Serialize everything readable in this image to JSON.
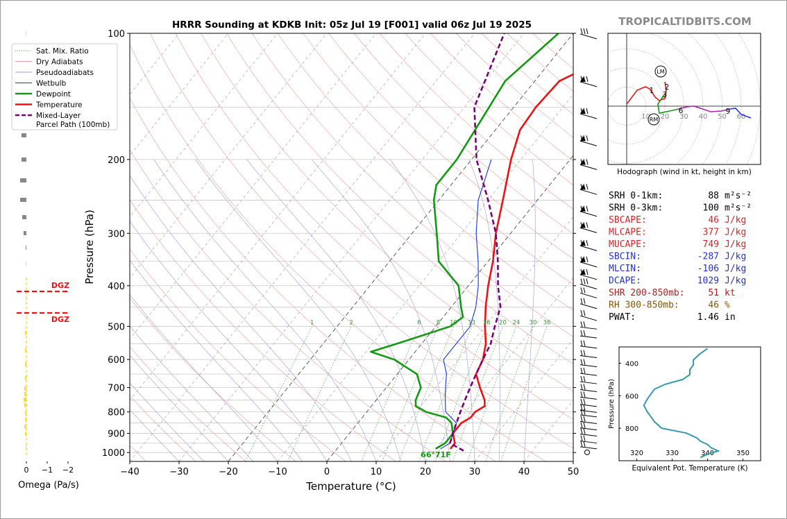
{
  "title": "HRRR Sounding at KDKB Init: 05z Jul 19 [F001] valid 06z Jul 19 2025",
  "brand": "TROPICALTIDBITS.COM",
  "colors": {
    "temp": "#ee1111",
    "dew": "#119911",
    "wetbulb": "#1133ee",
    "parcel": "#770077",
    "omega": "#ffdd33",
    "dgz": "#ee1111",
    "theta": "#3399aa"
  },
  "legend": [
    {
      "label": "Sat. Mix. Ratio",
      "color": "#339933",
      "style": "dotted"
    },
    {
      "label": "Dry Adiabats",
      "color": "#ee9999",
      "style": "solid"
    },
    {
      "label": "Pseudoadiabats",
      "color": "#9999dd",
      "style": "solid"
    },
    {
      "label": "Wetbulb",
      "color": "#1133ee",
      "style": "solid"
    },
    {
      "label": "Dewpoint",
      "color": "#119911",
      "style": "solid"
    },
    {
      "label": "Temperature",
      "color": "#ee1111",
      "style": "solid"
    },
    {
      "label": "Mixed-Layer",
      "label2": "Parcel Path (100mb)",
      "color": "#770077",
      "style": "dashed"
    }
  ],
  "surface_label": "66°71F",
  "omega_panel": {
    "xlabel": "Omega (Pa/s)",
    "ticks": [
      "0",
      "−1",
      "−2"
    ],
    "dgz_label": "DGZ"
  },
  "hodograph": {
    "caption": "Hodograph (wind in kt, height in km)",
    "ring_labels": [
      "10",
      "20",
      "30",
      "40",
      "50",
      "60"
    ],
    "markers": [
      "LM",
      "RM"
    ],
    "height_labels": [
      "1",
      "2",
      "3",
      "6",
      "9"
    ]
  },
  "indices": [
    {
      "label": "SRH 0-1km:",
      "value": "88",
      "unit": "m²s⁻²",
      "color": "#000000"
    },
    {
      "label": "SRH 0-3km:",
      "value": "100",
      "unit": "m²s⁻²",
      "color": "#000000"
    },
    {
      "label": "SBCAPE:",
      "value": "46",
      "unit": "J/kg",
      "color": "#dd2222"
    },
    {
      "label": "MLCAPE:",
      "value": "377",
      "unit": "J/kg",
      "color": "#dd2222"
    },
    {
      "label": "MUCAPE:",
      "value": "749",
      "unit": "J/kg",
      "color": "#dd2222"
    },
    {
      "label": "SBCIN:",
      "value": "-287",
      "unit": "J/kg",
      "color": "#2233cc"
    },
    {
      "label": "MLCIN:",
      "value": "-106",
      "unit": "J/kg",
      "color": "#2233cc"
    },
    {
      "label": "DCAPE:",
      "value": "1029",
      "unit": "J/kg",
      "color": "#2233cc"
    },
    {
      "label": "SHR 200-850mb:",
      "value": "51",
      "unit": "kt",
      "color": "#aa2222"
    },
    {
      "label": "RH 300-850mb:",
      "value": "46",
      "unit": "%",
      "color": "#885500"
    },
    {
      "label": "PWAT:",
      "value": "1.46",
      "unit": "in",
      "color": "#000000"
    }
  ],
  "chart_data": [
    {
      "type": "line",
      "title": "HRRR Sounding at KDKB Init: 05z Jul 19 [F001] valid 06z Jul 19 2025",
      "xlabel": "Temperature (°C)",
      "ylabel": "Pressure (hPa)",
      "xlim": [
        -40,
        50
      ],
      "ylim": [
        1050,
        100
      ],
      "yscale": "log",
      "grid": true,
      "xticks": [
        -40,
        -30,
        -20,
        -10,
        0,
        10,
        20,
        30,
        40,
        50
      ],
      "yticks": [
        100,
        200,
        300,
        400,
        500,
        600,
        700,
        800,
        900,
        1000
      ],
      "mixing_ratio_labels": [
        "1",
        "2",
        "6",
        "8",
        "10",
        "13",
        "16",
        "20",
        "24",
        "30",
        "36"
      ],
      "series": [
        {
          "name": "Temperature",
          "p": [
            980,
            950,
            925,
            900,
            875,
            850,
            825,
            800,
            775,
            750,
            700,
            650,
            600,
            550,
            500,
            450,
            400,
            350,
            300,
            250,
            200,
            170,
            150,
            130,
            100
          ],
          "t": [
            23,
            23,
            22,
            21,
            21,
            21,
            22,
            22,
            23,
            22,
            19,
            16,
            15,
            13,
            10,
            7,
            4,
            1,
            -3,
            -7,
            -12,
            -15,
            -15.5,
            -15,
            -3
          ]
        },
        {
          "name": "Dewpoint",
          "p": [
            980,
            950,
            900,
            850,
            825,
            800,
            775,
            750,
            700,
            650,
            600,
            575,
            550,
            500,
            475,
            450,
            400,
            350,
            300,
            250,
            230,
            200,
            150,
            130,
            100
          ],
          "t": [
            20,
            21,
            21,
            19,
            17,
            12,
            9,
            8,
            7,
            4,
            -3,
            -9,
            -5,
            3,
            4,
            2,
            -2,
            -10,
            -15,
            -21,
            -23,
            -23,
            -25,
            -26,
            -23
          ]
        },
        {
          "name": "Wetbulb",
          "p": [
            980,
            950,
            900,
            850,
            800,
            750,
            700,
            650,
            600,
            550,
            500,
            450,
            400,
            350,
            300,
            250,
            200
          ],
          "t": [
            21,
            22,
            21,
            20,
            16,
            14,
            12,
            10,
            7,
            7,
            7,
            5,
            2,
            -2,
            -7,
            -12,
            -16
          ]
        },
        {
          "name": "Mixed-Layer Parcel Path (100mb)",
          "p": [
            990,
            950,
            900,
            850,
            800,
            750,
            700,
            650,
            600,
            550,
            500,
            450,
            400,
            350,
            300,
            250,
            200,
            150,
            100
          ],
          "t": [
            26,
            22,
            21,
            20,
            19,
            18,
            17,
            16,
            15,
            14,
            12,
            10,
            6,
            2,
            -3,
            -10,
            -19,
            -28,
            -34
          ]
        }
      ]
    },
    {
      "type": "line",
      "title": "",
      "xlabel": "Equivalent Pot. Temperature (K)",
      "ylabel": "Pressure (hPa)",
      "xlim": [
        315,
        355
      ],
      "ylim": [
        1000,
        300
      ],
      "xticks": [
        320,
        330,
        340,
        350
      ],
      "yticks": [
        400,
        600,
        800
      ],
      "series": [
        {
          "name": "Theta-E",
          "p": [
            980,
            960,
            940,
            920,
            900,
            880,
            860,
            830,
            800,
            760,
            730,
            700,
            660,
            620,
            590,
            560,
            530,
            500,
            470,
            440,
            410,
            380,
            340,
            310
          ],
          "t": [
            338,
            340,
            343,
            341,
            340,
            338,
            337,
            334,
            327,
            325,
            324,
            323,
            322,
            323,
            324,
            325,
            328,
            333,
            335,
            335,
            336,
            336,
            338,
            340
          ]
        }
      ]
    }
  ]
}
